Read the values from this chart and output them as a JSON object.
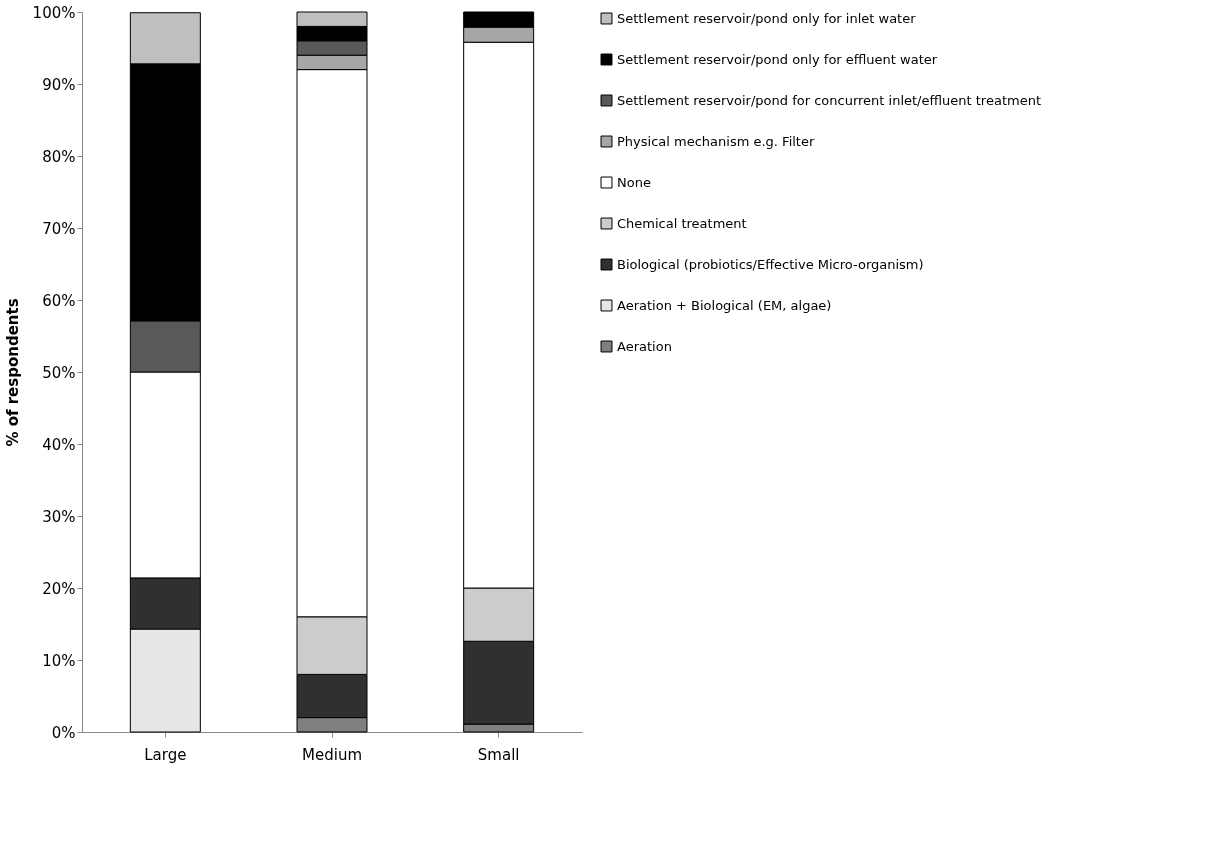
{
  "chart_data": {
    "type": "bar",
    "stacked": true,
    "ylabel": "% of respondents",
    "categories": [
      "Large",
      "Medium",
      "Small"
    ],
    "ylim": [
      0,
      100
    ],
    "yticks": [
      {
        "value": 0,
        "label": "0%"
      },
      {
        "value": 10,
        "label": "10%"
      },
      {
        "value": 20,
        "label": "20%"
      },
      {
        "value": 30,
        "label": "30%"
      },
      {
        "value": 40,
        "label": "40%"
      },
      {
        "value": 50,
        "label": "50%"
      },
      {
        "value": 60,
        "label": "60%"
      },
      {
        "value": 70,
        "label": "70%"
      },
      {
        "value": 80,
        "label": "80%"
      },
      {
        "value": 90,
        "label": "90%"
      },
      {
        "value": 100,
        "label": "100%"
      }
    ],
    "grid": false,
    "legend": "right",
    "series": [
      {
        "name": "Aeration",
        "color": "#7f7f7f",
        "values": [
          0,
          2,
          1.1
        ]
      },
      {
        "name": "Aeration + Biological (EM, algae)",
        "color": "#e6e6e6",
        "values": [
          14.3,
          0,
          0
        ]
      },
      {
        "name": "Biological (probiotics/Effective Micro-organism)",
        "color": "#303030",
        "values": [
          7.1,
          6,
          11.5
        ]
      },
      {
        "name": "Chemical treatment",
        "color": "#cccccc",
        "values": [
          0,
          8,
          7.4
        ]
      },
      {
        "name": "None",
        "color": "#ffffff",
        "values": [
          28.6,
          76,
          75.8
        ]
      },
      {
        "name": "Physical mechanism e.g. Filter",
        "color": "#a6a6a6",
        "values": [
          0,
          2,
          2.1
        ]
      },
      {
        "name": "Settlement reservoir/pond for concurrent inlet/effluent treatment",
        "color": "#595959",
        "values": [
          7.1,
          2,
          0
        ]
      },
      {
        "name": "Settlement reservoir/pond only for effluent water",
        "color": "#000000",
        "values": [
          35.7,
          2,
          2.1
        ]
      },
      {
        "name": "Settlement reservoir/pond only for inlet water",
        "color": "#bfbfbf",
        "values": [
          7.1,
          2,
          0
        ]
      }
    ]
  }
}
